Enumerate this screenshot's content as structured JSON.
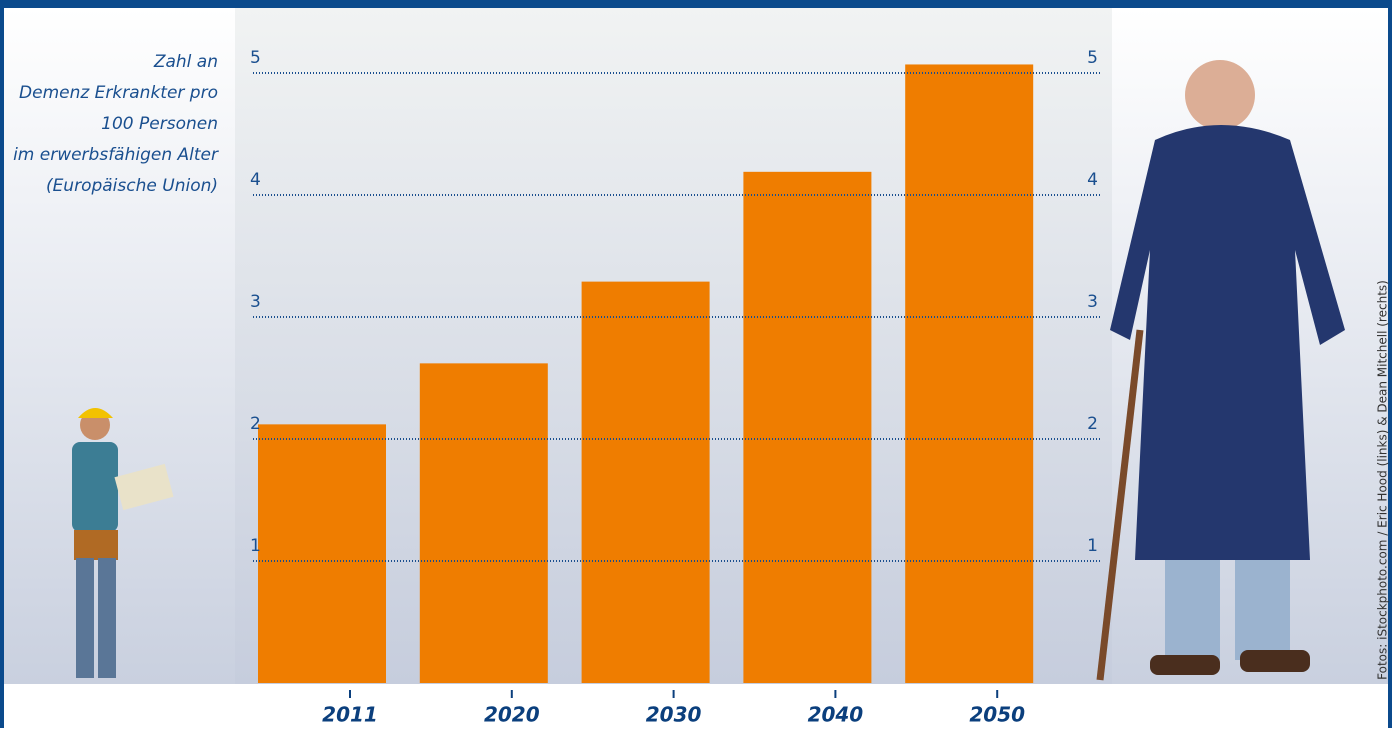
{
  "chart_data": {
    "type": "bar",
    "ylabel": [
      "Zahl an",
      "Demenz Erkrankter pro",
      "100 Personen",
      "im erwerbsfähigen Alter",
      "(Europäische Union)"
    ],
    "categories": [
      "2011",
      "2020",
      "2030",
      "2040",
      "2050"
    ],
    "values": [
      2.12,
      2.62,
      3.29,
      4.19,
      5.07
    ],
    "color": "#ef7d00",
    "ylim": [
      0,
      5.5
    ],
    "yticks": [
      1,
      2,
      3,
      4,
      5
    ],
    "grid": true,
    "credit": "Fotos: iStockphoto.com / Eric Hood (links) & Dean Mitchell (rechts)"
  }
}
